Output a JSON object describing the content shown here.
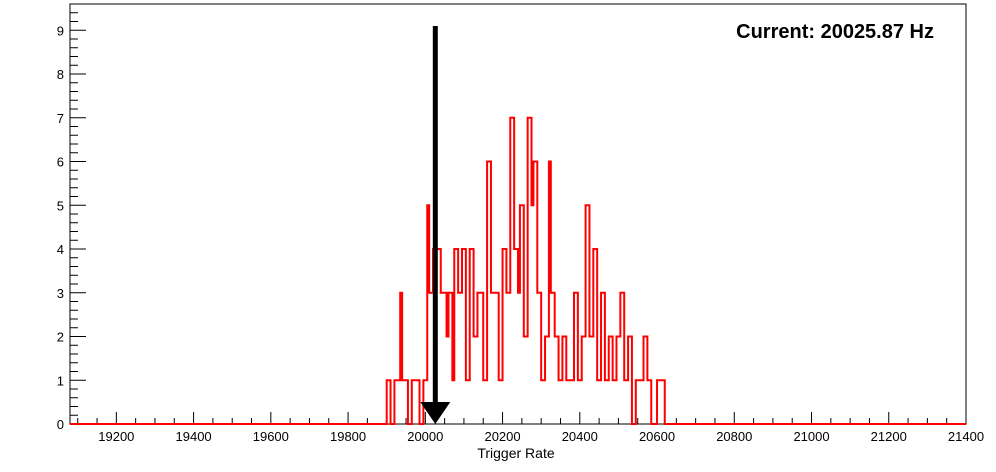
{
  "chart_data": {
    "type": "bar",
    "subtype": "histogram-step",
    "title": "",
    "xlabel": "Trigger Rate",
    "ylabel": "",
    "xlim": [
      19080,
      21400
    ],
    "ylim": [
      0,
      9.6
    ],
    "x_ticks": [
      19200,
      19400,
      19600,
      19800,
      20000,
      20200,
      20400,
      20600,
      20800,
      21000,
      21200,
      21400
    ],
    "y_ticks": [
      0,
      1,
      2,
      3,
      4,
      5,
      6,
      7,
      8,
      9
    ],
    "grid": false,
    "legend": "none",
    "line_color": "#ff0000",
    "annotation": {
      "text": "Current: 20025.87 Hz",
      "marker": "arrow-down",
      "x": 20025.87,
      "arrow_color": "#000000"
    },
    "series": [
      {
        "values_note": "",
        "bin_edges": [
          19900,
          19910,
          19920,
          19935,
          19940,
          19955,
          19965,
          19985,
          19995,
          20005,
          20010,
          20020,
          20040,
          20055,
          20060,
          20070,
          20075,
          20085,
          20095,
          20105,
          20115,
          20125,
          20135,
          20145,
          20150,
          20160,
          20170,
          20180,
          20190,
          20200,
          20210,
          20220,
          20230,
          20240,
          20245,
          20255,
          20265,
          20275,
          20280,
          20290,
          20300,
          20310,
          20320,
          20325,
          20335,
          20345,
          20355,
          20365,
          20375,
          20385,
          20395,
          20405,
          20415,
          20425,
          20435,
          20445,
          20455,
          20465,
          20475,
          20485,
          20495,
          20505,
          20515,
          20525,
          20535,
          20545,
          20555,
          20565,
          20575,
          20585,
          20600,
          20620
        ],
        "values": [
          1,
          0,
          1,
          3,
          1,
          0,
          1,
          0,
          1,
          5,
          3,
          4,
          3,
          2,
          3,
          1,
          4,
          3,
          4,
          1,
          4,
          2,
          3,
          3,
          1,
          6,
          3,
          3,
          1,
          4,
          3,
          7,
          4,
          3,
          5,
          2,
          7,
          5,
          6,
          3,
          1,
          2,
          6,
          3,
          2,
          1,
          2,
          1,
          1,
          3,
          1,
          2,
          5,
          2,
          4,
          1,
          3,
          1,
          2,
          1,
          2,
          3,
          1,
          2,
          0,
          1,
          1,
          2,
          1,
          0,
          1
        ]
      }
    ]
  }
}
